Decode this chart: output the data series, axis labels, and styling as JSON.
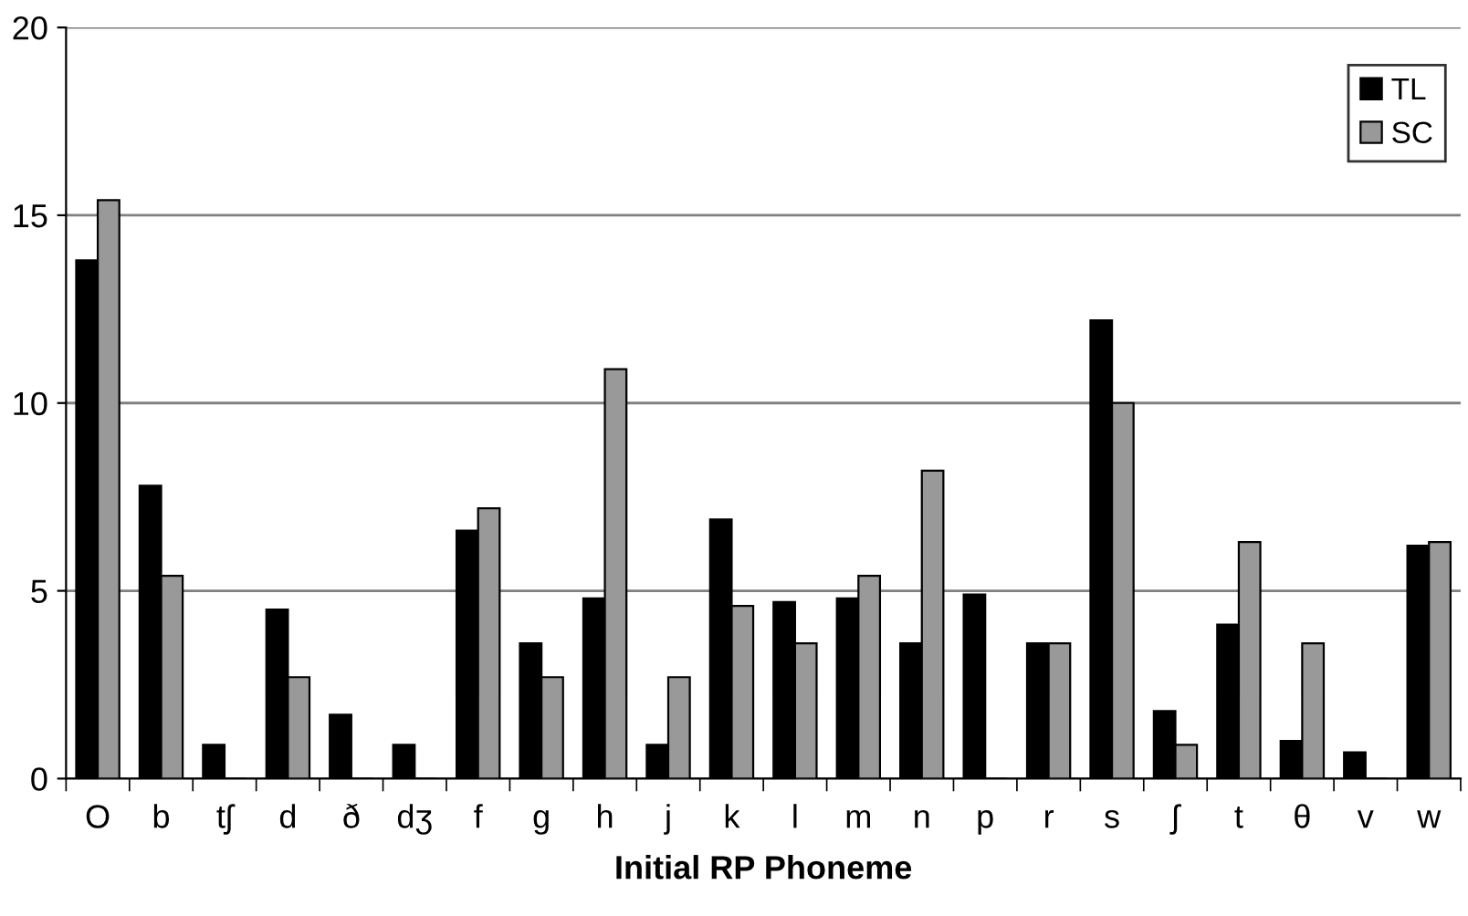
{
  "chart_data": {
    "type": "bar",
    "xlabel": "Initial RP Phoneme",
    "categories": [
      "O",
      "b",
      "tʃ",
      "d",
      "ð",
      "dʒ",
      "f",
      "g",
      "h",
      "j",
      "k",
      "l",
      "m",
      "n",
      "p",
      "r",
      "s",
      "ʃ",
      "t",
      "θ",
      "v",
      "w"
    ],
    "series": [
      {
        "name": "TL",
        "color": "#000000",
        "values": [
          13.8,
          7.8,
          0.9,
          4.5,
          1.7,
          0.9,
          6.6,
          3.6,
          4.8,
          0.9,
          6.9,
          4.7,
          4.8,
          3.6,
          4.9,
          3.6,
          12.2,
          1.8,
          4.1,
          1.0,
          0.7,
          6.2
        ]
      },
      {
        "name": "SC",
        "color": "#999999",
        "values": [
          15.4,
          5.4,
          0,
          2.7,
          0,
          0,
          7.2,
          2.7,
          10.9,
          2.7,
          4.6,
          3.6,
          5.4,
          8.2,
          0,
          3.6,
          10.0,
          0.9,
          6.3,
          3.6,
          0,
          6.3
        ]
      }
    ],
    "ylim": [
      0,
      20
    ],
    "yticks": [
      0,
      5,
      10,
      15,
      20
    ],
    "grid": "y",
    "legend": "top right"
  }
}
